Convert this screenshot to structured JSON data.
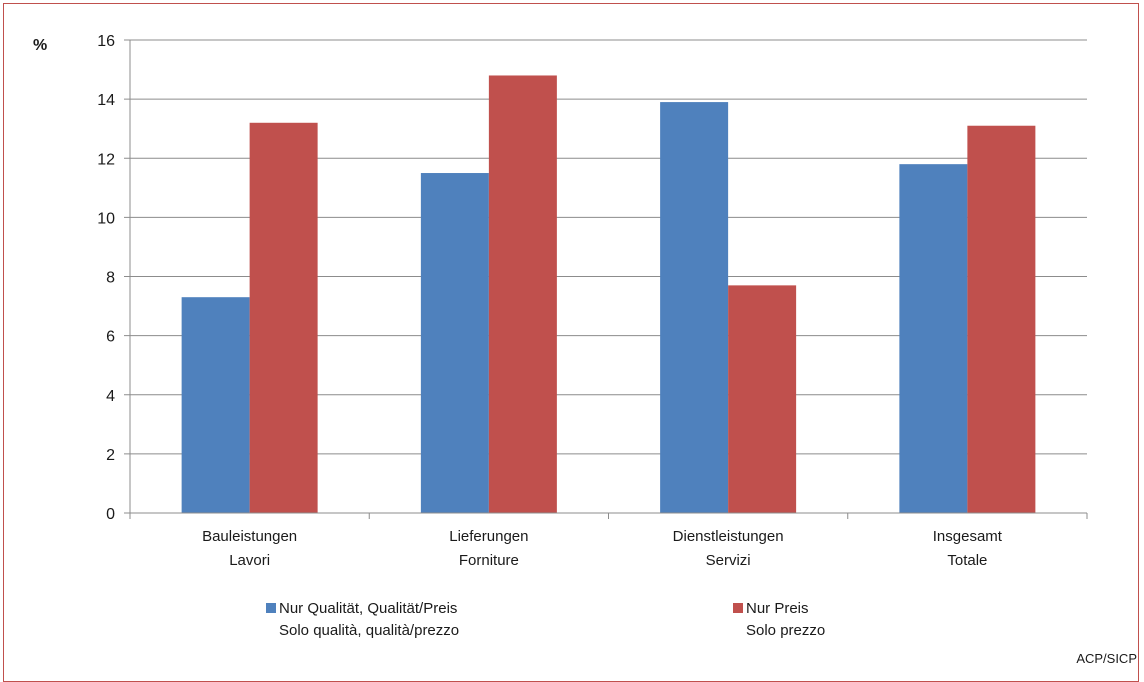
{
  "chart_data": {
    "type": "bar",
    "ylabel": "%",
    "ylim": [
      0,
      16
    ],
    "yticks": [
      0,
      2,
      4,
      6,
      8,
      10,
      12,
      14,
      16
    ],
    "grid": true,
    "legend_position": "bottom",
    "categories": [
      [
        "Bauleistungen",
        "Lavori"
      ],
      [
        "Lieferungen",
        "Forniture"
      ],
      [
        "Dienstleistungen",
        "Servizi"
      ],
      [
        "Insgesamt",
        "Totale"
      ]
    ],
    "series": [
      {
        "name": [
          "Nur Qualität, Qualität/Preis",
          "Solo qualità, qualità/prezzo"
        ],
        "color": "#4f81bd",
        "values": [
          7.3,
          11.5,
          13.9,
          11.8
        ]
      },
      {
        "name": [
          "Nur Preis",
          "Solo prezzo"
        ],
        "color": "#c0504d",
        "values": [
          13.2,
          14.8,
          7.7,
          13.1
        ]
      }
    ]
  },
  "source": "ACP/SICP"
}
